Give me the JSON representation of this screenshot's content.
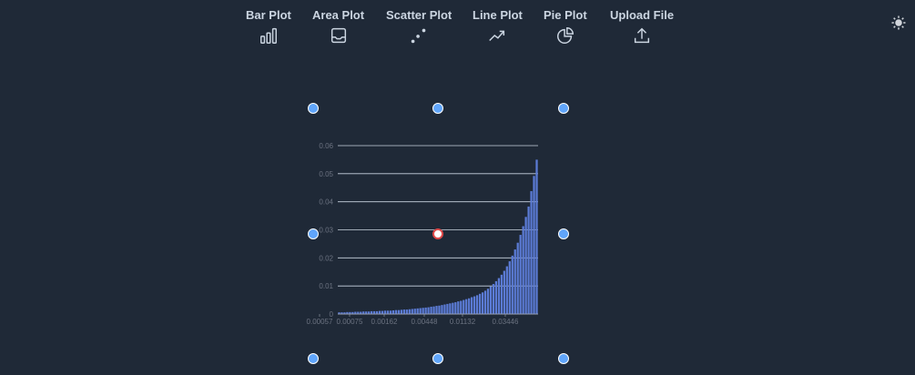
{
  "toolbar": {
    "items": [
      {
        "label": "Bar Plot",
        "icon": "bar-chart-icon"
      },
      {
        "label": "Area Plot",
        "icon": "area-chart-icon"
      },
      {
        "label": "Scatter Plot",
        "icon": "scatter-chart-icon"
      },
      {
        "label": "Line Plot",
        "icon": "line-chart-icon"
      },
      {
        "label": "Pie Plot",
        "icon": "pie-chart-icon"
      },
      {
        "label": "Upload File",
        "icon": "upload-icon"
      }
    ],
    "theme_icon": "sun-icon"
  },
  "colors": {
    "background": "#1f2937",
    "bar": "#5b7bd5",
    "handle": "#60a5fa",
    "center_handle_border": "#e04848",
    "gridline": "#cbd5e1"
  },
  "chart_data": {
    "type": "bar",
    "ylim": [
      0,
      0.06
    ],
    "yticks": [
      "0",
      "0.01",
      "0.02",
      "0.03",
      "0.04",
      "0.05",
      "0.06"
    ],
    "xtick_labels": [
      "0.00057",
      "0.00075",
      "0.00162",
      "0.00448",
      "0.01132",
      "0.03446"
    ],
    "grid": true,
    "values": [
      0.0006,
      0.0006,
      0.0006,
      0.0007,
      0.0007,
      0.0007,
      0.0008,
      0.0008,
      0.0008,
      0.0009,
      0.0009,
      0.0009,
      0.001,
      0.001,
      0.001,
      0.0011,
      0.0011,
      0.0012,
      0.0012,
      0.0012,
      0.0013,
      0.0014,
      0.0014,
      0.0015,
      0.0016,
      0.0016,
      0.0017,
      0.0018,
      0.0019,
      0.002,
      0.0021,
      0.0022,
      0.0023,
      0.0024,
      0.0026,
      0.0027,
      0.0029,
      0.003,
      0.0032,
      0.0034,
      0.0036,
      0.0038,
      0.004,
      0.0042,
      0.0045,
      0.0047,
      0.005,
      0.0053,
      0.0056,
      0.006,
      0.0063,
      0.0067,
      0.0072,
      0.0077,
      0.0083,
      0.009,
      0.0098,
      0.0107,
      0.0117,
      0.0128,
      0.014,
      0.0154,
      0.017,
      0.0188,
      0.0208,
      0.023,
      0.0254,
      0.0282,
      0.0313,
      0.0346,
      0.0383,
      0.0438,
      0.0492,
      0.055
    ]
  }
}
